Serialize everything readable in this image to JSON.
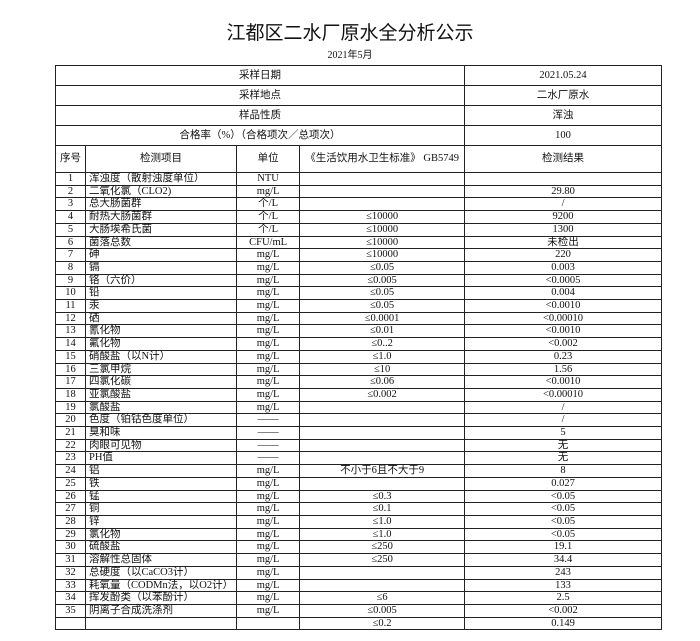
{
  "title": "江都区二水厂原水全分析公示",
  "date": "2021年5月",
  "info": [
    {
      "label": "采样日期",
      "value": "2021.05.24"
    },
    {
      "label": "采样地点",
      "value": "二水厂原水"
    },
    {
      "label": "样品性质",
      "value": "浑浊"
    },
    {
      "label": "合格率（%）（合格项次／总项次）",
      "value": "100"
    }
  ],
  "columns": {
    "seq": "序号",
    "item": "检测项目",
    "unit": "单位",
    "std": "《生活饮用水卫生标准》 GB5749",
    "res": "检测结果"
  },
  "rows": [
    [
      "1",
      "浑浊度（散射浊度单位）",
      "NTU",
      "",
      ""
    ],
    [
      "2",
      "二氧化氯（CLO2)",
      "mg/L",
      "",
      "29.80"
    ],
    [
      "3",
      "总大肠菌群",
      "个/L",
      "",
      "/"
    ],
    [
      "4",
      "耐热大肠菌群",
      "个/L",
      "≤10000",
      "9200"
    ],
    [
      "5",
      "大肠埃希氏菌",
      "个/L",
      "≤10000",
      "1300"
    ],
    [
      "6",
      "菌落总数",
      "CFU/mL",
      "≤10000",
      "未检出"
    ],
    [
      "7",
      "砷",
      "mg/L",
      "≤10000",
      "220"
    ],
    [
      "8",
      "镉",
      "mg/L",
      "≤0.05",
      "0.003"
    ],
    [
      "9",
      "铬（六价）",
      "mg/L",
      "≤0.005",
      "<0.0005"
    ],
    [
      "10",
      "铅",
      "mg/L",
      "≤0.05",
      "0.004"
    ],
    [
      "11",
      "汞",
      "mg/L",
      "≤0.05",
      "<0.0010"
    ],
    [
      "12",
      "硒",
      "mg/L",
      "≤0.0001",
      "<0.00010"
    ],
    [
      "13",
      "氰化物",
      "mg/L",
      "≤0.01",
      "<0.0010"
    ],
    [
      "14",
      "氟化物",
      "mg/L",
      "≤0..2",
      "<0.002"
    ],
    [
      "15",
      "硝酸盐（以N计）",
      "mg/L",
      "≤1.0",
      "0.23"
    ],
    [
      "16",
      "三氯甲烷",
      "mg/L",
      "≤10",
      "1.56"
    ],
    [
      "17",
      "四氯化碳",
      "mg/L",
      "≤0.06",
      "<0.0010"
    ],
    [
      "18",
      "亚氯酸盐",
      "mg/L",
      "≤0.002",
      "<0.00010"
    ],
    [
      "19",
      "氯酸盐",
      "mg/L",
      "",
      "/"
    ],
    [
      "20",
      "色度（铂钴色度单位）",
      "——",
      "",
      "/"
    ],
    [
      "21",
      "臭和味",
      "——",
      "",
      "5"
    ],
    [
      "22",
      "肉眼可见物",
      "——",
      "",
      "无"
    ],
    [
      "23",
      "PH值",
      "——",
      "",
      "无"
    ],
    [
      "24",
      "铝",
      "mg/L",
      "不小于6且不大于9",
      "8"
    ],
    [
      "25",
      "铁",
      "mg/L",
      "",
      "0.027"
    ],
    [
      "26",
      "锰",
      "mg/L",
      "≤0.3",
      "<0.05"
    ],
    [
      "27",
      "铜",
      "mg/L",
      "≤0.1",
      "<0.05"
    ],
    [
      "28",
      "锌",
      "mg/L",
      "≤1.0",
      "<0.05"
    ],
    [
      "29",
      "氯化物",
      "mg/L",
      "≤1.0",
      "<0.05"
    ],
    [
      "30",
      "硫酸盐",
      "mg/L",
      "≤250",
      "19.1"
    ],
    [
      "31",
      "溶解性总固体",
      "mg/L",
      "≤250",
      "34.4"
    ],
    [
      "32",
      "总硬度（以CaCO3计）",
      "mg/L",
      "",
      "243"
    ],
    [
      "33",
      "耗氧量（CODMn法，以O2计）",
      "mg/L",
      "",
      "133"
    ],
    [
      "34",
      "挥发酚类（以苯酚计）",
      "mg/L",
      "≤6",
      "2.5"
    ],
    [
      "35",
      "阴离子合成洗涤剂",
      "mg/L",
      "≤0.005",
      "<0.002"
    ],
    [
      "",
      "",
      "",
      "≤0.2",
      "0.149"
    ]
  ]
}
